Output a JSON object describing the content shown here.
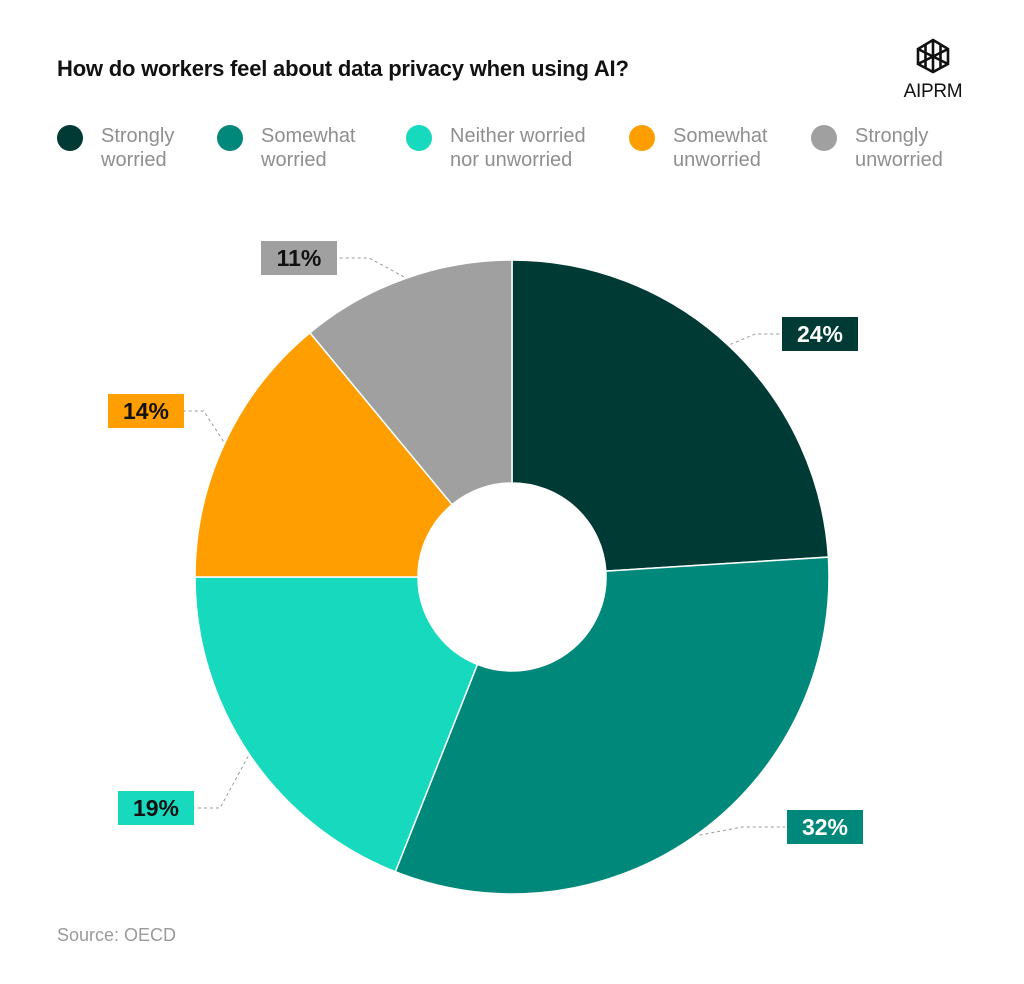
{
  "brand": {
    "logo_text": "AIPRM"
  },
  "source": "Source: OECD",
  "chart_data": {
    "type": "pie",
    "title": "How do workers feel about data privacy when using AI?",
    "legend_placement": "top",
    "slices": [
      {
        "name": "Strongly\nworried",
        "value": 24,
        "label": "24%",
        "color": "#003a35",
        "label_text_color": "#ffffff"
      },
      {
        "name": "Somewhat\nworried",
        "value": 32,
        "label": "32%",
        "color": "#00897a",
        "label_text_color": "#ffffff"
      },
      {
        "name": "Neither worried\nnor unworried",
        "value": 19,
        "label": "19%",
        "color": "#17d9bd",
        "label_text_color": "#111111"
      },
      {
        "name": "Somewhat\nunworried",
        "value": 14,
        "label": "14%",
        "color": "#ff9e00",
        "label_text_color": "#111111"
      },
      {
        "name": "Strongly\nunworried",
        "value": 11,
        "label": "11%",
        "color": "#a0a0a0",
        "label_text_color": "#111111"
      }
    ]
  }
}
